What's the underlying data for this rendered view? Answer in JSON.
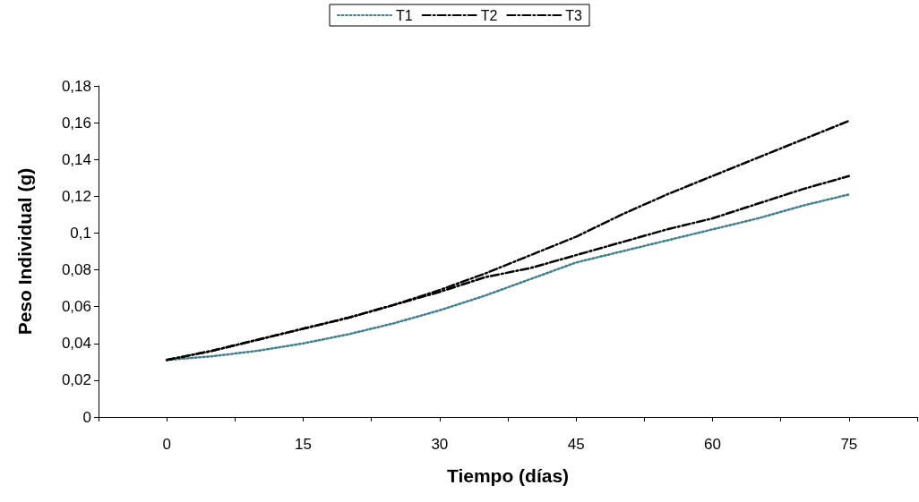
{
  "chart_data": {
    "type": "line",
    "xlabel": "Tiempo (días)",
    "ylabel": "Peso Individual (g)",
    "x": [
      0,
      5,
      10,
      15,
      20,
      25,
      30,
      35,
      40,
      45,
      50,
      55,
      60,
      65,
      70,
      75
    ],
    "series": [
      {
        "name": "T1",
        "color": "#3f7f8f",
        "line_style": "dotted",
        "values": [
          0.031,
          0.033,
          0.036,
          0.04,
          0.045,
          0.051,
          0.058,
          0.066,
          0.075,
          0.084,
          0.09,
          0.096,
          0.102,
          0.108,
          0.115,
          0.121
        ]
      },
      {
        "name": "T2",
        "color": "#000000",
        "line_style": "dashed",
        "values": [
          0.031,
          0.036,
          0.042,
          0.048,
          0.054,
          0.061,
          0.068,
          0.076,
          0.081,
          0.088,
          0.095,
          0.102,
          0.108,
          0.116,
          0.124,
          0.131
        ]
      },
      {
        "name": "T3",
        "color": "#000000",
        "line_style": "dashed",
        "values": [
          0.031,
          0.036,
          0.042,
          0.048,
          0.054,
          0.061,
          0.069,
          0.078,
          0.088,
          0.098,
          0.11,
          0.121,
          0.131,
          0.141,
          0.151,
          0.161
        ]
      }
    ],
    "xlim": [
      -7.5,
      82.5
    ],
    "xticks": [
      {
        "value": -7.5,
        "label": null
      },
      0,
      {
        "value": 7.5,
        "label": null
      },
      15,
      {
        "value": 22.5,
        "label": null
      },
      30,
      {
        "value": 37.5,
        "label": null
      },
      45,
      {
        "value": 52.5,
        "label": null
      },
      60,
      {
        "value": 67.5,
        "label": null
      },
      75,
      {
        "value": 82.5,
        "label": null
      }
    ],
    "ylim": [
      0,
      0.18
    ],
    "yticks": [
      0,
      {
        "value": 0.02,
        "label": "0,02"
      },
      {
        "value": 0.04,
        "label": "0,04"
      },
      {
        "value": 0.06,
        "label": "0,06"
      },
      {
        "value": 0.08,
        "label": "0,08"
      },
      {
        "value": 0.1,
        "label": "0,1"
      },
      {
        "value": 0.12,
        "label": "0,12"
      },
      {
        "value": 0.14,
        "label": "0,14"
      },
      {
        "value": 0.16,
        "label": "0,16"
      },
      {
        "value": 0.18,
        "label": "0,18"
      }
    ],
    "grid": false,
    "legend": "top",
    "marker": "none"
  }
}
